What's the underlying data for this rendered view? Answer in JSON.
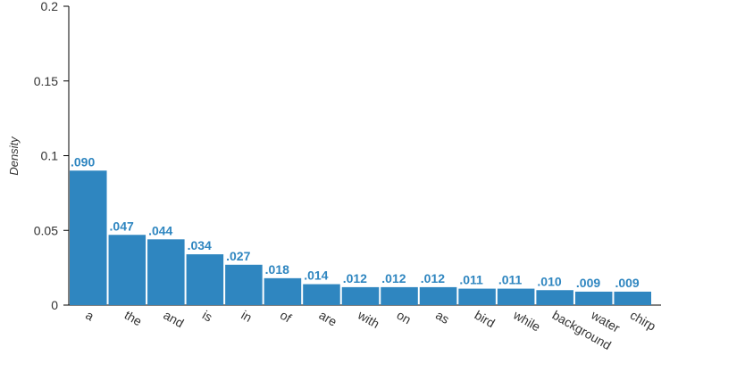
{
  "chart_data": {
    "type": "bar",
    "y_label": "Density",
    "categories": [
      "a",
      "the",
      "and",
      "is",
      "in",
      "of",
      "are",
      "with",
      "on",
      "as",
      "bird",
      "while",
      "background",
      "water",
      "chirp"
    ],
    "values": [
      0.09,
      0.047,
      0.044,
      0.034,
      0.027,
      0.018,
      0.014,
      0.012,
      0.012,
      0.012,
      0.011,
      0.011,
      0.01,
      0.009,
      0.009
    ],
    "value_labels": [
      ".090",
      ".047",
      ".044",
      ".034",
      ".027",
      ".018",
      ".014",
      ".012",
      ".012",
      ".012",
      ".011",
      ".011",
      ".010",
      ".009",
      ".009"
    ],
    "color": "#2f86c0",
    "ylim": [
      0,
      0.2
    ],
    "yticks": [
      0,
      0.05,
      0.1,
      0.15,
      0.2
    ]
  }
}
